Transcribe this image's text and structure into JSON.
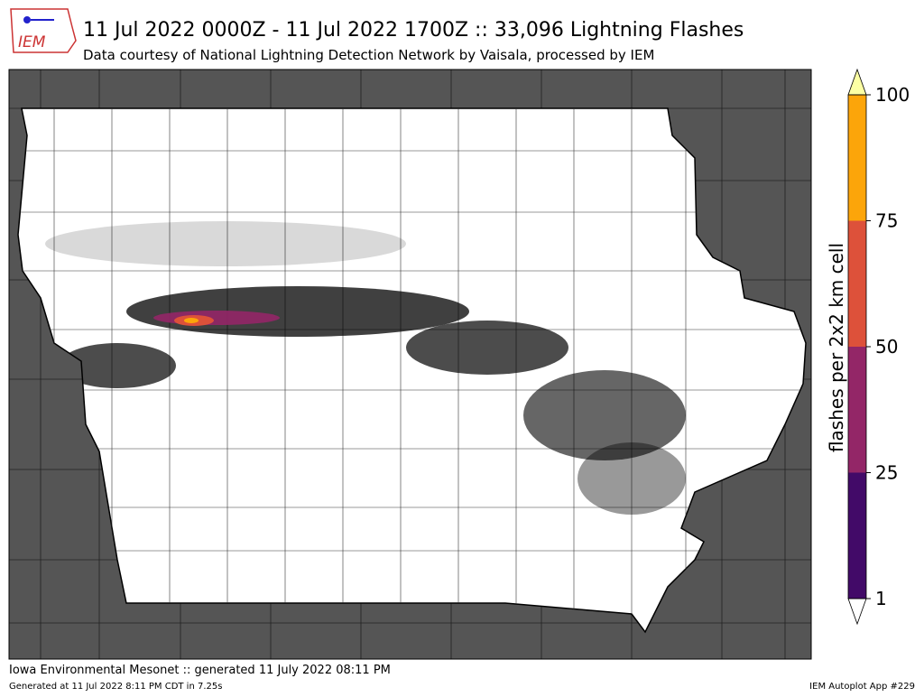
{
  "header": {
    "title": "11 Jul 2022 0000Z - 11 Jul 2022 1700Z :: 33,096 Lightning Flashes",
    "subtitle": "Data courtesy of National Lightning Detection Network by Vaisala, processed by IEM",
    "logo_text": "IEM"
  },
  "colorbar": {
    "label": "flashes per 2x2 km cell",
    "ticks": [
      1,
      25,
      50,
      75,
      100
    ],
    "colors": [
      "#420a68",
      "#932667",
      "#dd513a",
      "#fca50a"
    ],
    "under_color": "#ffffff",
    "over_color": "#fcffa4"
  },
  "footer": {
    "left_main": "Iowa Environmental Mesonet :: generated 11 July 2022 08:11 PM",
    "left_small": "Generated at 11 Jul 2022 8:11 PM CDT in 7.25s",
    "right": "IEM Autoplot App #229"
  }
}
